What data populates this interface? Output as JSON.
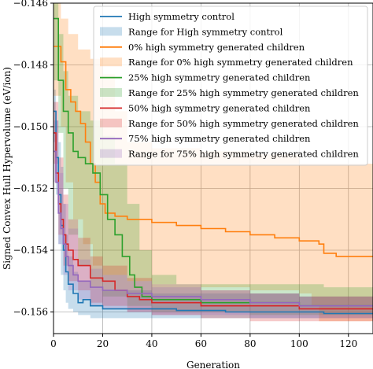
{
  "chart_data": {
    "type": "line",
    "xlabel": "Generation",
    "ylabel": "Signed Convex Hull Hypervolume (eV/ion)",
    "xlim": [
      0,
      130
    ],
    "ylim": [
      -0.1567,
      -0.146
    ],
    "xticks": [
      0,
      20,
      40,
      60,
      80,
      100,
      120
    ],
    "yticks": [
      -0.156,
      -0.154,
      -0.152,
      -0.15,
      -0.148,
      -0.146
    ],
    "xtick_labels": [
      "0",
      "20",
      "40",
      "60",
      "80",
      "100",
      "120"
    ],
    "ytick_labels": [
      "−0.156",
      "−0.154",
      "−0.152",
      "−0.150",
      "−0.148",
      "−0.146"
    ],
    "grid": true,
    "legend_position": "top-right",
    "series": [
      {
        "name": "High symmetry control",
        "color": "#1f77b4",
        "range_name": "Range for High symmetry control",
        "points": [
          [
            0,
            -0.1495
          ],
          [
            1,
            -0.151
          ],
          [
            2,
            -0.1522
          ],
          [
            3,
            -0.1532
          ],
          [
            4,
            -0.154
          ],
          [
            5,
            -0.1547
          ],
          [
            6,
            -0.1551
          ],
          [
            8,
            -0.1554
          ],
          [
            10,
            -0.1557
          ],
          [
            12,
            -0.1556
          ],
          [
            15,
            -0.1558
          ],
          [
            20,
            -0.1559
          ],
          [
            25,
            -0.1559
          ],
          [
            30,
            -0.1559
          ],
          [
            40,
            -0.1559
          ],
          [
            50,
            -0.15595
          ],
          [
            70,
            -0.156
          ],
          [
            90,
            -0.156
          ],
          [
            110,
            -0.15605
          ],
          [
            130,
            -0.15605
          ]
        ],
        "upper": [
          [
            0,
            -0.1488
          ],
          [
            1,
            -0.1498
          ],
          [
            2,
            -0.1505
          ],
          [
            3,
            -0.1513
          ],
          [
            4,
            -0.1525
          ],
          [
            5,
            -0.1535
          ],
          [
            6,
            -0.1542
          ],
          [
            8,
            -0.1547
          ],
          [
            10,
            -0.155
          ],
          [
            15,
            -0.1552
          ],
          [
            20,
            -0.1553
          ],
          [
            30,
            -0.1553
          ],
          [
            40,
            -0.1554
          ],
          [
            60,
            -0.1554
          ],
          [
            80,
            -0.1554
          ],
          [
            100,
            -0.1555
          ],
          [
            130,
            -0.1555
          ]
        ],
        "lower": [
          [
            0,
            -0.1505
          ],
          [
            1,
            -0.1522
          ],
          [
            2,
            -0.1538
          ],
          [
            3,
            -0.1548
          ],
          [
            4,
            -0.1553
          ],
          [
            5,
            -0.1557
          ],
          [
            6,
            -0.1559
          ],
          [
            8,
            -0.156
          ],
          [
            10,
            -0.1561
          ],
          [
            15,
            -0.1562
          ],
          [
            20,
            -0.1562
          ],
          [
            30,
            -0.1562
          ],
          [
            40,
            -0.1562
          ],
          [
            60,
            -0.1562
          ],
          [
            80,
            -0.1562
          ],
          [
            100,
            -0.1562
          ],
          [
            130,
            -0.1562
          ]
        ]
      },
      {
        "name": "0% high symmetry generated children",
        "color": "#ff7f0e",
        "range_name": "Range for 0% high symmetry generated children",
        "points": [
          [
            0,
            -0.1474
          ],
          [
            3,
            -0.1479
          ],
          [
            5,
            -0.1488
          ],
          [
            7,
            -0.1492
          ],
          [
            9,
            -0.1495
          ],
          [
            11,
            -0.1499
          ],
          [
            13,
            -0.1505
          ],
          [
            15,
            -0.1512
          ],
          [
            17,
            -0.1518
          ],
          [
            19,
            -0.1525
          ],
          [
            21,
            -0.1528
          ],
          [
            25,
            -0.1529
          ],
          [
            30,
            -0.153
          ],
          [
            40,
            -0.1531
          ],
          [
            50,
            -0.1532
          ],
          [
            60,
            -0.1533
          ],
          [
            70,
            -0.1534
          ],
          [
            80,
            -0.1535
          ],
          [
            90,
            -0.1536
          ],
          [
            100,
            -0.1537
          ],
          [
            108,
            -0.1538
          ],
          [
            110,
            -0.1541
          ],
          [
            115,
            -0.1542
          ],
          [
            120,
            -0.1542
          ],
          [
            130,
            -0.1542
          ]
        ],
        "upper": [
          [
            0,
            -0.146
          ],
          [
            3,
            -0.1465
          ],
          [
            6,
            -0.147
          ],
          [
            10,
            -0.1475
          ],
          [
            15,
            -0.1478
          ],
          [
            20,
            -0.1483
          ],
          [
            25,
            -0.1495
          ],
          [
            30,
            -0.1505
          ],
          [
            40,
            -0.1507
          ],
          [
            60,
            -0.1508
          ],
          [
            80,
            -0.1509
          ],
          [
            100,
            -0.1512
          ],
          [
            130,
            -0.1512
          ]
        ],
        "lower": [
          [
            0,
            -0.149
          ],
          [
            3,
            -0.15
          ],
          [
            5,
            -0.1518
          ],
          [
            8,
            -0.153
          ],
          [
            12,
            -0.1538
          ],
          [
            16,
            -0.1545
          ],
          [
            20,
            -0.1548
          ],
          [
            30,
            -0.155
          ],
          [
            40,
            -0.1551
          ],
          [
            60,
            -0.1552
          ],
          [
            80,
            -0.1553
          ],
          [
            100,
            -0.1554
          ],
          [
            105,
            -0.1558
          ],
          [
            108,
            -0.1563
          ],
          [
            130,
            -0.1563
          ]
        ]
      },
      {
        "name": "25% high symmetry generated children",
        "color": "#2ca02c",
        "range_name": "Range for 25% high symmetry generated children",
        "points": [
          [
            0,
            -0.1465
          ],
          [
            2,
            -0.1485
          ],
          [
            4,
            -0.1495
          ],
          [
            6,
            -0.1502
          ],
          [
            8,
            -0.1508
          ],
          [
            10,
            -0.151
          ],
          [
            13,
            -0.1512
          ],
          [
            16,
            -0.1515
          ],
          [
            19,
            -0.1522
          ],
          [
            22,
            -0.153
          ],
          [
            25,
            -0.1535
          ],
          [
            28,
            -0.1542
          ],
          [
            31,
            -0.1548
          ],
          [
            33,
            -0.1552
          ],
          [
            36,
            -0.1555
          ],
          [
            40,
            -0.1556
          ],
          [
            60,
            -0.1557
          ],
          [
            80,
            -0.1557
          ],
          [
            100,
            -0.1558
          ],
          [
            130,
            -0.1558
          ]
        ],
        "upper": [
          [
            0,
            -0.146
          ],
          [
            2,
            -0.147
          ],
          [
            4,
            -0.1482
          ],
          [
            6,
            -0.149
          ],
          [
            10,
            -0.1495
          ],
          [
            15,
            -0.1498
          ],
          [
            20,
            -0.1503
          ],
          [
            25,
            -0.1512
          ],
          [
            30,
            -0.1525
          ],
          [
            35,
            -0.154
          ],
          [
            40,
            -0.1548
          ],
          [
            50,
            -0.1551
          ],
          [
            70,
            -0.1551
          ],
          [
            90,
            -0.1551
          ],
          [
            110,
            -0.1552
          ],
          [
            130,
            -0.1552
          ]
        ],
        "lower": [
          [
            0,
            -0.1485
          ],
          [
            2,
            -0.1502
          ],
          [
            4,
            -0.152
          ],
          [
            6,
            -0.1535
          ],
          [
            10,
            -0.1545
          ],
          [
            15,
            -0.1552
          ],
          [
            20,
            -0.1555
          ],
          [
            30,
            -0.1558
          ],
          [
            40,
            -0.156
          ],
          [
            60,
            -0.156
          ],
          [
            80,
            -0.1561
          ],
          [
            100,
            -0.1561
          ],
          [
            130,
            -0.1561
          ]
        ]
      },
      {
        "name": "50% high symmetry generated children",
        "color": "#d62728",
        "range_name": "Range for 50% high symmetry generated children",
        "points": [
          [
            0,
            -0.1502
          ],
          [
            1,
            -0.1515
          ],
          [
            2,
            -0.1525
          ],
          [
            3,
            -0.153
          ],
          [
            4,
            -0.1535
          ],
          [
            5,
            -0.1538
          ],
          [
            6,
            -0.154
          ],
          [
            8,
            -0.1543
          ],
          [
            10,
            -0.1545
          ],
          [
            15,
            -0.1549
          ],
          [
            20,
            -0.155
          ],
          [
            25,
            -0.1553
          ],
          [
            30,
            -0.1555
          ],
          [
            35,
            -0.1556
          ],
          [
            40,
            -0.1557
          ],
          [
            60,
            -0.1558
          ],
          [
            80,
            -0.1558
          ],
          [
            100,
            -0.1559
          ],
          [
            130,
            -0.1559
          ]
        ],
        "upper": [
          [
            0,
            -0.1492
          ],
          [
            2,
            -0.151
          ],
          [
            4,
            -0.1522
          ],
          [
            6,
            -0.153
          ],
          [
            10,
            -0.1536
          ],
          [
            15,
            -0.1542
          ],
          [
            20,
            -0.1545
          ],
          [
            30,
            -0.1549
          ],
          [
            40,
            -0.1551
          ],
          [
            60,
            -0.1553
          ],
          [
            80,
            -0.1554
          ],
          [
            100,
            -0.1555
          ],
          [
            130,
            -0.1555
          ]
        ],
        "lower": [
          [
            0,
            -0.1512
          ],
          [
            2,
            -0.1535
          ],
          [
            4,
            -0.1545
          ],
          [
            6,
            -0.155
          ],
          [
            10,
            -0.1553
          ],
          [
            15,
            -0.1557
          ],
          [
            20,
            -0.1558
          ],
          [
            30,
            -0.156
          ],
          [
            40,
            -0.1561
          ],
          [
            60,
            -0.1562
          ],
          [
            80,
            -0.1563
          ],
          [
            100,
            -0.1563
          ],
          [
            130,
            -0.1563
          ]
        ]
      },
      {
        "name": "75% high symmetry generated children",
        "color": "#9467bd",
        "range_name": "Range for 75% high symmetry generated children",
        "points": [
          [
            0,
            -0.1508
          ],
          [
            1,
            -0.1518
          ],
          [
            2,
            -0.1528
          ],
          [
            3,
            -0.1533
          ],
          [
            4,
            -0.1538
          ],
          [
            5,
            -0.1542
          ],
          [
            6,
            -0.1545
          ],
          [
            8,
            -0.1548
          ],
          [
            10,
            -0.155
          ],
          [
            15,
            -0.1552
          ],
          [
            20,
            -0.1553
          ],
          [
            30,
            -0.1554
          ],
          [
            40,
            -0.1555
          ],
          [
            50,
            -0.1555
          ],
          [
            60,
            -0.1556
          ],
          [
            80,
            -0.1557
          ],
          [
            100,
            -0.1558
          ],
          [
            130,
            -0.1558
          ]
        ],
        "upper": [
          [
            0,
            -0.1498
          ],
          [
            2,
            -0.1515
          ],
          [
            4,
            -0.1525
          ],
          [
            6,
            -0.1533
          ],
          [
            10,
            -0.1543
          ],
          [
            15,
            -0.1546
          ],
          [
            20,
            -0.1548
          ],
          [
            30,
            -0.155
          ],
          [
            40,
            -0.1552
          ],
          [
            60,
            -0.1553
          ],
          [
            80,
            -0.1554
          ],
          [
            100,
            -0.1555
          ],
          [
            130,
            -0.1555
          ]
        ],
        "lower": [
          [
            0,
            -0.1518
          ],
          [
            2,
            -0.1538
          ],
          [
            4,
            -0.1548
          ],
          [
            6,
            -0.1553
          ],
          [
            10,
            -0.1556
          ],
          [
            15,
            -0.1558
          ],
          [
            20,
            -0.1559
          ],
          [
            30,
            -0.156
          ],
          [
            40,
            -0.1561
          ],
          [
            60,
            -0.1561
          ],
          [
            80,
            -0.1562
          ],
          [
            100,
            -0.1562
          ],
          [
            130,
            -0.1562
          ]
        ]
      }
    ]
  }
}
